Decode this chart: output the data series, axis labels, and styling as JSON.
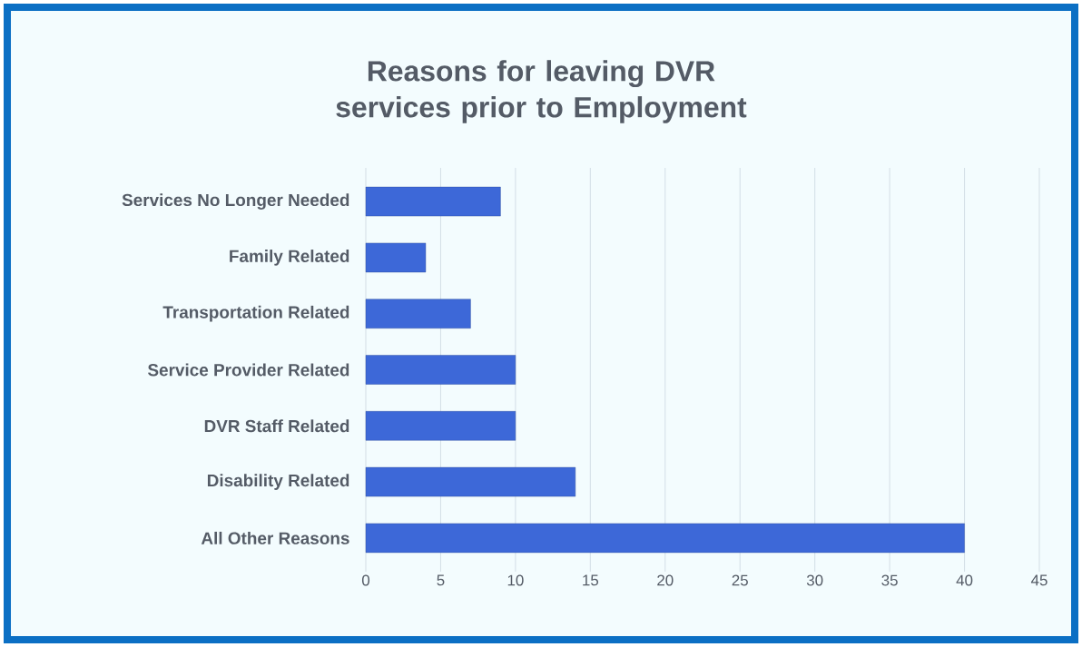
{
  "chart_data": {
    "type": "bar",
    "orientation": "horizontal",
    "title": "Reasons for leaving DVR services prior to Employment",
    "categories": [
      "Services No Longer Needed",
      "Family Related",
      "Transportation Related",
      "Service Provider Related",
      "DVR Staff Related",
      "Disability Related",
      "All Other Reasons"
    ],
    "values": [
      9,
      4,
      7,
      10,
      10,
      14,
      40
    ],
    "color": "#3d68d8",
    "xlim": [
      0,
      45
    ],
    "xticks": [
      0,
      5,
      10,
      15,
      20,
      25,
      30,
      35,
      40,
      45
    ],
    "grid": "x"
  }
}
